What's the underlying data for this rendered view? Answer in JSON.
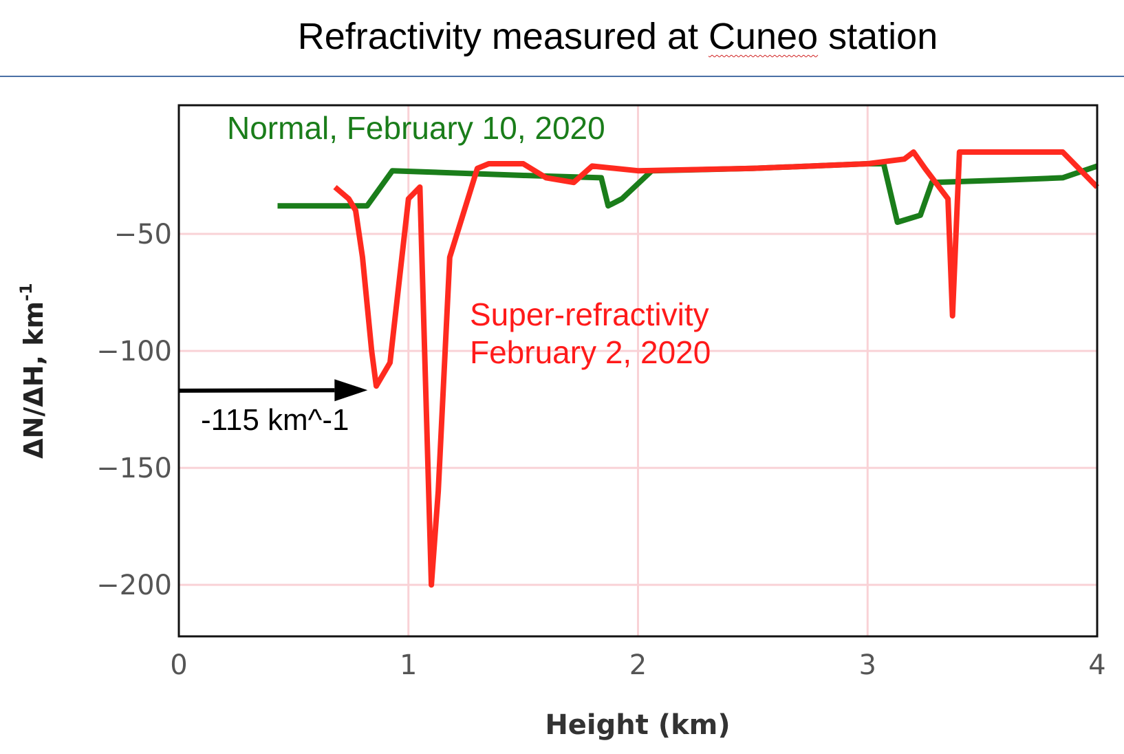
{
  "page": {
    "title_before": "Refractivity measured at ",
    "title_word": "Cuneo",
    "title_after": " station"
  },
  "chart_data": {
    "type": "line",
    "title": "Refractivity measured at Cuneo station",
    "xlabel": "Height (km)",
    "ylabel": "ΔN/ΔH, km",
    "ylabel_superscript": "-1",
    "xlim": [
      0,
      4
    ],
    "ylim": [
      -222,
      5
    ],
    "xticks": [
      0,
      1,
      2,
      3,
      4
    ],
    "yticks": [
      -50,
      -100,
      -150,
      -200
    ],
    "xtick_labels": [
      "0",
      "1",
      "2",
      "3",
      "4"
    ],
    "ytick_labels": [
      "−50",
      "−100",
      "−150",
      "−200"
    ],
    "grid": true,
    "grid_color": "#f9d2d6",
    "series": [
      {
        "name": "Normal, February 10, 2020",
        "color": "#1a7d1a",
        "x": [
          0.43,
          0.82,
          0.93,
          1.5,
          1.84,
          1.87,
          1.93,
          2.06,
          2.5,
          3.0,
          3.07,
          3.13,
          3.23,
          3.28,
          3.6,
          3.85,
          4.0
        ],
        "y": [
          -38,
          -38,
          -23,
          -25,
          -26,
          -38,
          -35,
          -23,
          -22,
          -20,
          -20,
          -45,
          -42,
          -28,
          -27,
          -26,
          -21
        ]
      },
      {
        "name": "Super-refractivity\nFebruary 2, 2020",
        "color": "#ff2a1f",
        "x": [
          0.68,
          0.74,
          0.77,
          0.8,
          0.84,
          0.86,
          0.92,
          1.0,
          1.05,
          1.1,
          1.13,
          1.18,
          1.3,
          1.35,
          1.5,
          1.6,
          1.72,
          1.8,
          2.0,
          2.5,
          3.0,
          3.16,
          3.2,
          3.25,
          3.35,
          3.37,
          3.4,
          3.85,
          3.95,
          4.0
        ],
        "y": [
          -30,
          -35,
          -40,
          -60,
          -100,
          -115,
          -105,
          -35,
          -30,
          -200,
          -160,
          -60,
          -22,
          -20,
          -20,
          -26,
          -28,
          -21,
          -23,
          -22,
          -20,
          -18,
          -15,
          -22,
          -35,
          -85,
          -15,
          -15,
          -25,
          -30
        ]
      }
    ],
    "annotations": [
      {
        "text": "-115 km^-1",
        "arrow_from": [
          0.0,
          -117
        ],
        "arrow_to": [
          0.84,
          -115
        ]
      }
    ]
  }
}
